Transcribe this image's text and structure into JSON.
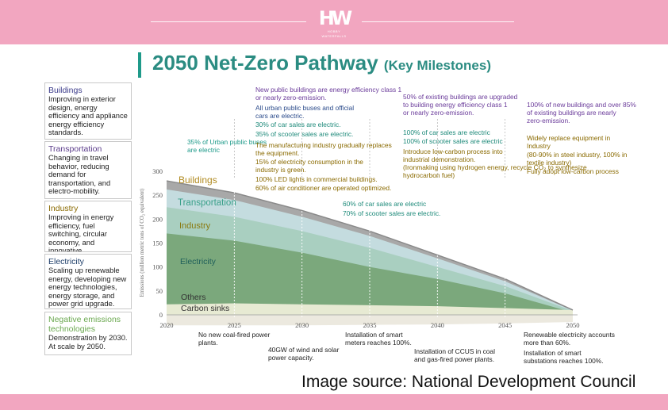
{
  "header": {
    "logo_mark": "HW",
    "logo_text": "HOBBY WATERFALLS"
  },
  "title": {
    "main": "2050 Net-Zero Pathway",
    "sub": "(Key Milestones)"
  },
  "source": "Image source: National Development Council",
  "sidebar": [
    {
      "heading": "Buildings",
      "body": "Improving in exterior design, energy efficiency and appliance energy efficiency standards.",
      "color": "#3b3b8a"
    },
    {
      "heading": "Transportation",
      "body": "Changing in travel behavior, reducing demand for transportation, and electro-mobility.",
      "color": "#5a3b8a"
    },
    {
      "heading": "Industry",
      "body": "Improving in energy efficiency, fuel switching, circular economy, and innovative technologies.",
      "color": "#8a6a00"
    },
    {
      "heading": "Electricity",
      "body": "Scaling up renewable energy, developing new energy technologies, energy storage, and power grid upgrade.",
      "color": "#1f3f6a"
    },
    {
      "heading": "Negative emissions technologies",
      "body": "Demonstration by 2030. At scale by 2050.",
      "color": "#6aa84f"
    }
  ],
  "chart_data": {
    "type": "area",
    "ylabel": "Emissions (million metric tons of CO₂ equivalent)",
    "x": [
      2020,
      2025,
      2030,
      2035,
      2040,
      2045,
      2050
    ],
    "xticks": [
      "2020",
      "2025",
      "2030",
      "2035",
      "2040",
      "2045",
      "2050"
    ],
    "yticks": [
      "0",
      "50",
      "100",
      "150",
      "200",
      "250",
      "300"
    ],
    "ylim": [
      0,
      300
    ],
    "series": [
      {
        "name": "Carbon sinks",
        "values": [
          -22,
          -22,
          -22,
          -21,
          -20,
          -18,
          -15
        ],
        "color": "#ece9df"
      },
      {
        "name": "Others",
        "values": [
          22,
          24,
          22,
          20,
          18,
          14,
          10
        ],
        "color": "#e7ead3"
      },
      {
        "name": "Electricity",
        "values": [
          170,
          155,
          130,
          100,
          75,
          45,
          5
        ],
        "color": "#7ba87c"
      },
      {
        "name": "Industry",
        "values": [
          225,
          205,
          175,
          140,
          100,
          60,
          8
        ],
        "color": "#a9cfc0"
      },
      {
        "name": "Transportation",
        "values": [
          262,
          240,
          205,
          165,
          118,
          70,
          9
        ],
        "color": "#c4dcdf"
      },
      {
        "name": "Buildings",
        "values": [
          280,
          255,
          218,
          175,
          125,
          75,
          10
        ],
        "color": "#a8a8a8"
      }
    ],
    "series_label_colors": {
      "Buildings": "#b08a20",
      "Transportation": "#3aa08a",
      "Industry": "#8a7a10",
      "Electricity": "#1f5f5a",
      "Others": "#333333",
      "Carbon sinks": "#333333"
    },
    "annotations_top": [
      {
        "text": "35% of Urban public buses are electric",
        "color": "#1e9a8a"
      },
      {
        "text": "New public buildings are energy efficiency class 1 or nearly zero-emission.",
        "color": "#6a3b9a"
      },
      {
        "text": "All urban public buses and official cars are electric.",
        "color": "#2a4a8a"
      },
      {
        "text": "30% of car sales are electric.",
        "color": "#1e8a7a"
      },
      {
        "text": "35% of scooter sales are electric.",
        "color": "#1e8a7a"
      },
      {
        "text": "The manufacturing industry gradually replaces the equipment.",
        "color": "#8a6a00"
      },
      {
        "text": "15% of electricity consumption in the industry is green.",
        "color": "#8a6a00"
      },
      {
        "text": "100% LED lights in commercial buildings.",
        "color": "#8a6a00"
      },
      {
        "text": "60% of air conditioner are operated optimized.",
        "color": "#8a6a00"
      },
      {
        "text": "50% of existing buildings are upgraded to building energy efficiency class 1 or nearly zero-emission.",
        "color": "#6a3b9a"
      },
      {
        "text": "100% of car sales are electric",
        "color": "#1e8a7a"
      },
      {
        "text": "100% of scooter sales are electric",
        "color": "#1e8a7a"
      },
      {
        "text": "Introduce low-carbon process into industrial demonstration.",
        "color": "#8a6a00"
      },
      {
        "text": "(Ironmaking using hydrogen energy, recycle CO₂ to synthesize hydrocarbon fuel)",
        "color": "#8a6a00"
      },
      {
        "text": "100% of new buildings and over 85% of existing buildings are nearly zero-emission.",
        "color": "#6a3b9a"
      },
      {
        "text": "Widely replace equipment in Industry",
        "color": "#8a6a00"
      },
      {
        "text": "(80-90% in steel industry, 100% in textile industry)",
        "color": "#8a6a00"
      },
      {
        "text": "Fully adopt low-carbon process",
        "color": "#8a6a00"
      },
      {
        "text": "60% of car sales are electric",
        "color": "#1e8a7a"
      },
      {
        "text": "70% of scooter sales are electric.",
        "color": "#1e8a7a"
      }
    ],
    "annotations_bottom": [
      {
        "text": "No new coal-fired power plants."
      },
      {
        "text": "40GW of wind and solar power capacity."
      },
      {
        "text": "Installation of smart meters reaches 100%."
      },
      {
        "text": "Installation of CCUS in coal and gas-fired power plants."
      },
      {
        "text": "Renewable electricity accounts more than 60%."
      },
      {
        "text": "Installation of smart substations reaches 100%."
      }
    ]
  }
}
